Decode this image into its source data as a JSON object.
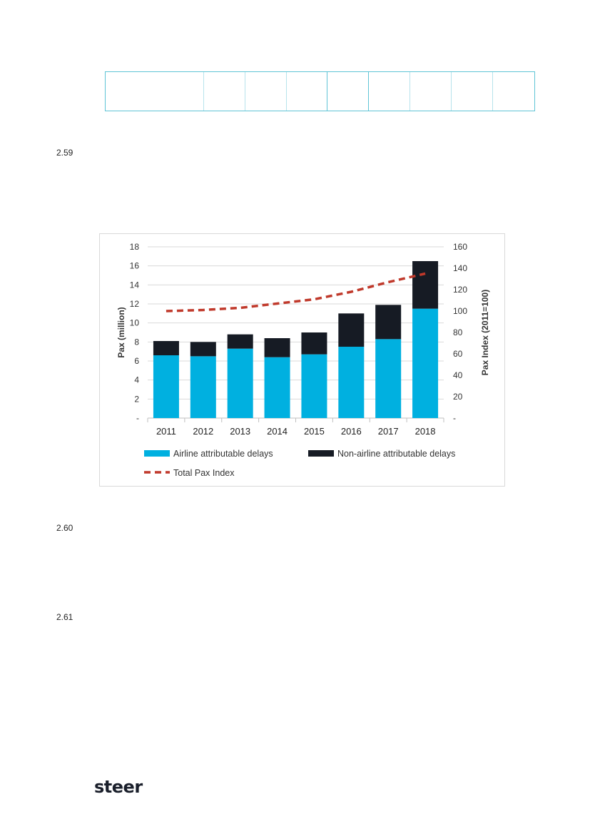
{
  "table": {
    "columns": [
      "",
      "",
      "",
      "",
      "",
      "",
      "",
      "",
      "",
      ""
    ]
  },
  "paragraphs": [
    {
      "number": "2.59"
    },
    {
      "number": "2.60"
    },
    {
      "number": "2.61"
    }
  ],
  "chart_data": {
    "type": "bar",
    "stacked": true,
    "categories": [
      "2011",
      "2012",
      "2013",
      "2014",
      "2015",
      "2016",
      "2017",
      "2018"
    ],
    "series": [
      {
        "name": "Airline attributable delays",
        "type": "bar",
        "axis": "left",
        "color": "#00b0e0",
        "values": [
          6.6,
          6.5,
          7.3,
          6.4,
          6.7,
          7.5,
          8.3,
          11.5
        ]
      },
      {
        "name": "Non-airline attributable delays",
        "type": "bar",
        "axis": "left",
        "color": "#161b24",
        "values": [
          1.5,
          1.5,
          1.5,
          2.0,
          2.3,
          3.5,
          3.6,
          5.0
        ]
      },
      {
        "name": "Total Pax Index",
        "type": "line",
        "style": "dashed",
        "axis": "right",
        "color": "#c0392b",
        "values": [
          100,
          101,
          103,
          107,
          111,
          118,
          127,
          135
        ]
      }
    ],
    "ylabel": "Pax (million)",
    "y2label": "Pax Index (2011=100)",
    "ylim": [
      0,
      18
    ],
    "y2lim": [
      0,
      160
    ],
    "yticks": [
      "-",
      "2",
      "4",
      "6",
      "8",
      "10",
      "12",
      "14",
      "16",
      "18"
    ],
    "y2ticks": [
      "-",
      "20",
      "40",
      "60",
      "80",
      "100",
      "120",
      "140",
      "160"
    ],
    "grid": true,
    "legend": {
      "position": "bottom",
      "items": [
        "Airline attributable delays",
        "Non-airline attributable delays",
        "Total Pax Index"
      ]
    }
  },
  "logo": {
    "text": "steer"
  }
}
